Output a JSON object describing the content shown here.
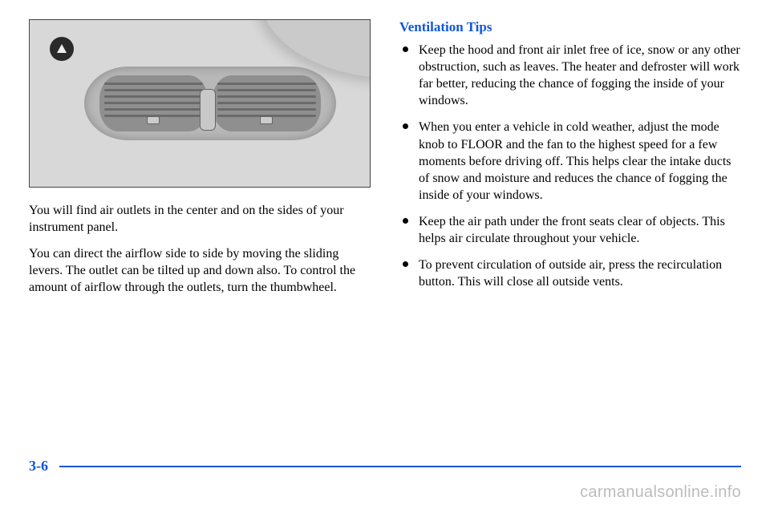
{
  "colors": {
    "accent": "#1156d8",
    "text": "#000000",
    "watermark": "#bcbcbc"
  },
  "left": {
    "para1": "You will find air outlets in the center and on the sides of your instrument panel.",
    "para2": "You can direct the airflow side to side by moving the sliding levers. The outlet can be tilted up and down also. To control the amount of airflow through the outlets, turn the thumbwheel."
  },
  "right": {
    "heading": "Ventilation Tips",
    "bullets": [
      "Keep the hood and front air inlet free of ice, snow or any other obstruction, such as leaves. The heater and defroster will work far better, reducing the chance of fogging the inside of your windows.",
      "When you enter a vehicle in cold weather, adjust the mode knob to FLOOR and the fan to the highest speed for a few moments before driving off. This helps clear the intake ducts of snow and moisture and reduces the chance of fogging the inside of your windows.",
      "Keep the air path under the front seats clear of objects. This helps air circulate throughout your vehicle.",
      "To prevent circulation of outside air, press the recirculation button. This will close all outside vents."
    ]
  },
  "footer": {
    "page_number": "3-6"
  },
  "watermark": "carmanualsonline.info"
}
